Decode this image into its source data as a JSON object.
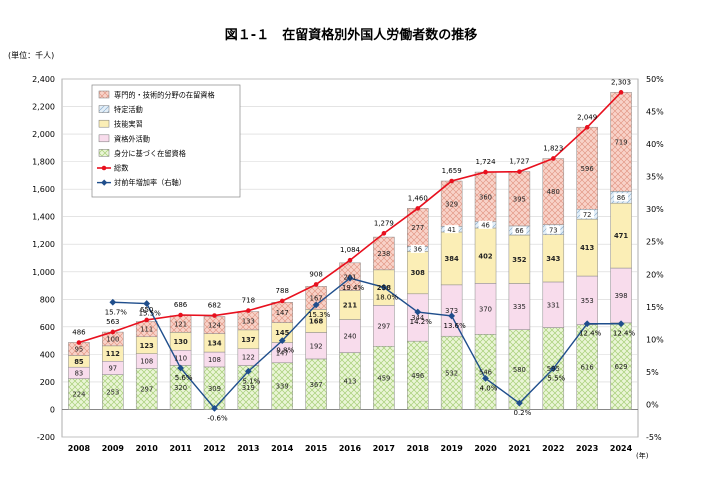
{
  "title": "図１-１　在留資格別外国人労働者数の推移",
  "unit_label": "(単位：千人)",
  "year_unit": "(年)",
  "chart_data": {
    "type": "stacked-bar+line",
    "categories": [
      "2008",
      "2009",
      "2010",
      "2011",
      "2012",
      "2013",
      "2014",
      "2015",
      "2016",
      "2017",
      "2018",
      "2019",
      "2020",
      "2021",
      "2022",
      "2023",
      "2024"
    ],
    "y_left": {
      "min": -200,
      "max": 2400,
      "step": 200
    },
    "y_right": {
      "min": -5,
      "max": 50,
      "step": 5,
      "unit": "%"
    },
    "bar_series": [
      {
        "name": "身分に基づく在留資格",
        "color": "#eaf5d6",
        "hatch": "grid",
        "hatch_color": "#a7cf78",
        "values": [
          224,
          253,
          297,
          320,
          309,
          319,
          339,
          367,
          413,
          459,
          496,
          532,
          546,
          580,
          595,
          616,
          629
        ]
      },
      {
        "name": "資格外活動",
        "color": "#f8dcec",
        "hatch": "none",
        "hatch_color": "",
        "values": [
          83,
          97,
          108,
          110,
          108,
          122,
          147,
          192,
          240,
          297,
          344,
          373,
          370,
          335,
          331,
          353,
          398
        ]
      },
      {
        "name": "技能実習",
        "color": "#fbeeb6",
        "hatch": "none",
        "hatch_color": "",
        "values": [
          85,
          112,
          123,
          130,
          134,
          137,
          145,
          168,
          211,
          258,
          308,
          384,
          402,
          352,
          343,
          413,
          471
        ]
      },
      {
        "name": "特定活動",
        "color": "#e3eef7",
        "hatch": "diag",
        "hatch_color": "#8fb0cf",
        "values": [
          0,
          0,
          0,
          0,
          0,
          0,
          0,
          0,
          0,
          0,
          36,
          41,
          46,
          66,
          73,
          72,
          86
        ]
      },
      {
        "name": "専門的・技術的分野の在留資格",
        "color": "#f8d2c8",
        "hatch": "cross",
        "hatch_color": "#e0907c",
        "values": [
          95,
          100,
          111,
          121,
          124,
          133,
          147,
          167,
          201,
          238,
          277,
          329,
          360,
          395,
          480,
          596,
          719
        ]
      }
    ],
    "segment_labels": [
      [
        "224",
        "253",
        "297",
        "320",
        "309",
        "319",
        "339",
        "367",
        "413",
        "459",
        "496",
        "532",
        "546",
        "580",
        "595",
        "616",
        "629"
      ],
      [
        "83",
        "97",
        "108",
        "110",
        "108",
        "122",
        "147",
        "192",
        "240",
        "297",
        "344",
        "373",
        "370",
        "335",
        "331",
        "353",
        "398"
      ],
      [
        "85",
        "112",
        "123",
        "130",
        "134",
        "137",
        "145",
        "168",
        "211",
        "258",
        "308",
        "384",
        "402",
        "352",
        "343",
        "413",
        "471"
      ],
      [
        "",
        "",
        "",
        "",
        "",
        "",
        "",
        "",
        "",
        "",
        "36",
        "41",
        "46",
        "66",
        "73",
        "72",
        "86"
      ],
      [
        "95",
        "100",
        "111",
        "121",
        "124",
        "133",
        "147",
        "167",
        "201",
        "238",
        "277",
        "329",
        "360",
        "395",
        "480",
        "596",
        "719"
      ]
    ],
    "bold_series_index": 2,
    "total": {
      "name": "総数",
      "color": "#e8101e",
      "values": [
        486,
        563,
        650,
        686,
        682,
        718,
        788,
        908,
        1084,
        1279,
        1460,
        1659,
        1724,
        1727,
        1823,
        2049,
        2303
      ],
      "labels": [
        "486",
        "563",
        "650",
        "686",
        "682",
        "718",
        "788",
        "908",
        "1,084",
        "1,279",
        "1,460",
        "1,659",
        "1,724",
        "1,727",
        "1,823",
        "2,049",
        "2,303"
      ]
    },
    "growth": {
      "name": "対前年増加率（右軸）",
      "color": "#1f4e8c",
      "values": [
        null,
        15.7,
        15.5,
        5.6,
        -0.6,
        5.1,
        9.8,
        15.3,
        19.4,
        18.0,
        14.2,
        13.6,
        4.0,
        0.2,
        5.5,
        12.4,
        12.4
      ],
      "labels": [
        "",
        "15.7%",
        "15.5%",
        "5.6%",
        "-0.6%",
        "5.1%",
        "9.8%",
        "15.3%",
        "19.4%",
        "18.0%",
        "14.2%",
        "13.6%",
        "4.0%",
        "0.2%",
        "5.5%",
        "12.4%",
        "12.4%"
      ]
    },
    "legend_order": [
      4,
      3,
      2,
      1,
      0
    ],
    "legend_position": "top-left"
  }
}
